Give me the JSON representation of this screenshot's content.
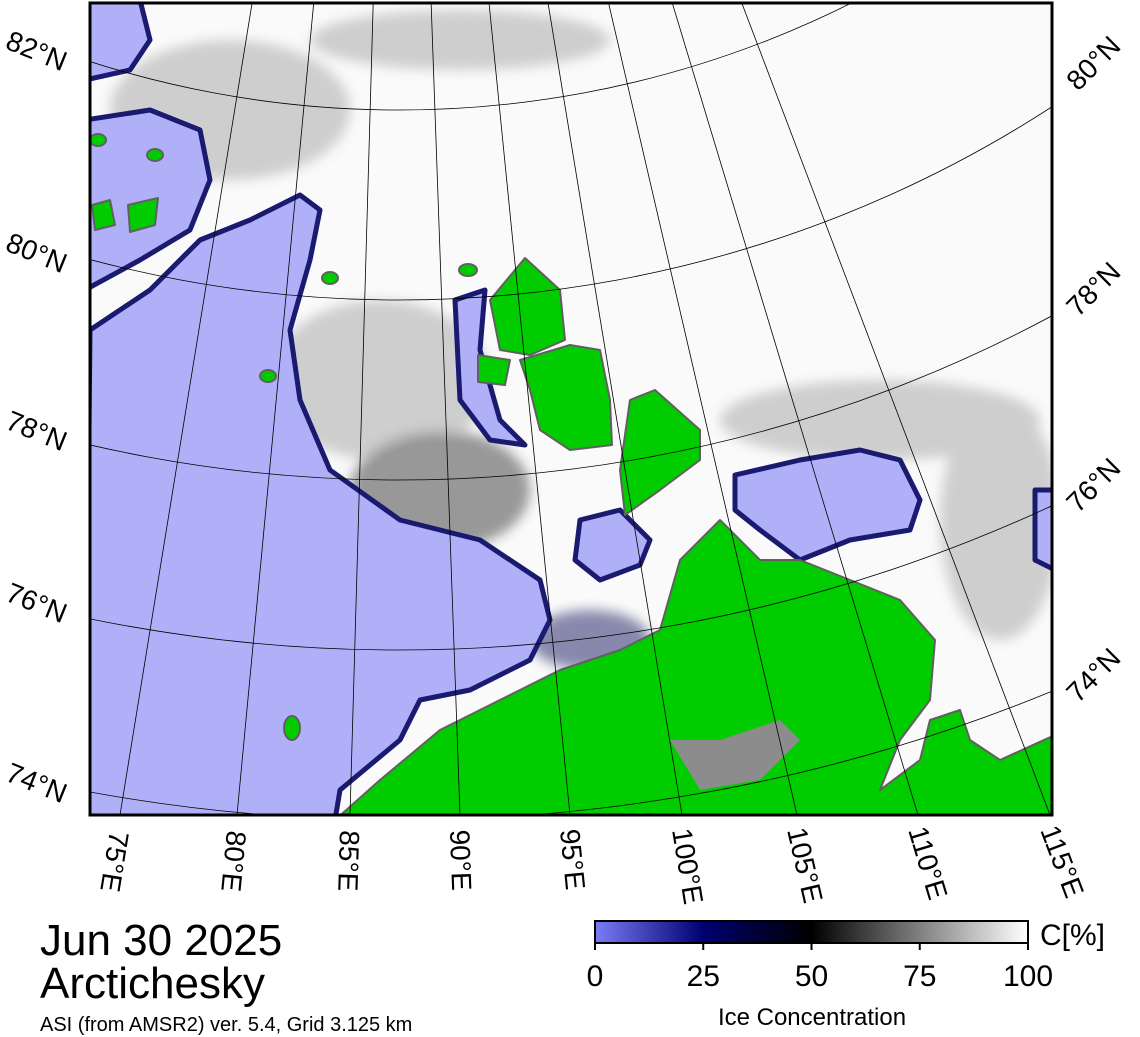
{
  "map": {
    "date": "Jun 30 2025",
    "region": "Arctichesky",
    "source": "ASI (from AMSR2) ver. 5.4,  Grid 3.125 km",
    "lat_labels_left": [
      "82°N",
      "80°N",
      "78°N",
      "76°N",
      "74°N"
    ],
    "lat_labels_right": [
      "80°N",
      "78°N",
      "76°N",
      "74°N"
    ],
    "lon_labels": [
      "75°E",
      "80°E",
      "85°E",
      "90°E",
      "95°E",
      "100°E",
      "105°E",
      "110°E",
      "115°E"
    ]
  },
  "colorbar": {
    "label": "Ice Concentration",
    "unit": "C[%]",
    "range": [
      0,
      100
    ],
    "ticks": [
      0,
      25,
      50,
      75,
      100
    ]
  }
}
